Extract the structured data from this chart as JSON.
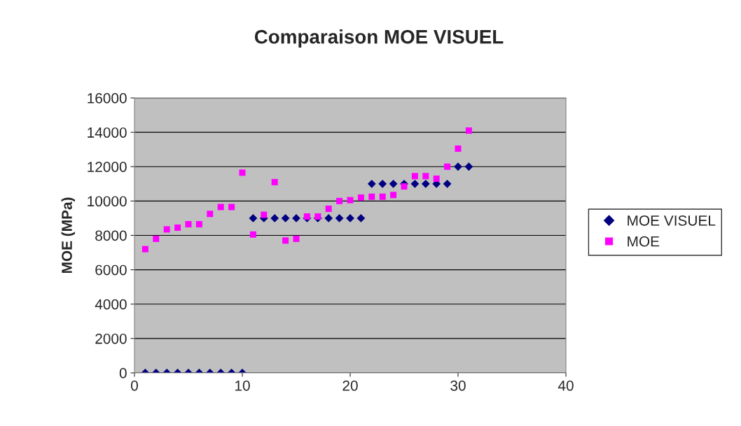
{
  "chart_data": {
    "type": "scatter",
    "title": "Comparaison MOE VISUEL",
    "ylabel": "MOE (MPa)",
    "x": [
      1,
      2,
      3,
      4,
      5,
      6,
      7,
      8,
      9,
      10,
      11,
      12,
      13,
      14,
      15,
      16,
      17,
      18,
      19,
      20,
      21,
      22,
      23,
      24,
      25,
      26,
      27,
      28,
      29,
      30,
      31
    ],
    "series": [
      {
        "name": "MOE VISUEL",
        "color": "#000080",
        "marker": "diamond",
        "values": [
          0,
          0,
          0,
          0,
          0,
          0,
          0,
          0,
          0,
          0,
          9000,
          9000,
          9000,
          9000,
          9000,
          9000,
          9000,
          9000,
          9000,
          9000,
          9000,
          11000,
          11000,
          11000,
          11000,
          11000,
          11000,
          11000,
          11000,
          12000,
          12000
        ]
      },
      {
        "name": "MOE",
        "color": "#ff00ff",
        "marker": "square",
        "values": [
          7200,
          7800,
          8350,
          8450,
          8650,
          8650,
          9250,
          9650,
          9650,
          11650,
          8050,
          9200,
          11100,
          7700,
          7800,
          9100,
          9100,
          9550,
          10000,
          10050,
          10200,
          10250,
          10250,
          10350,
          10850,
          11450,
          11450,
          11300,
          12000,
          13050,
          14100
        ]
      }
    ],
    "xlim": [
      0,
      40
    ],
    "xticks": [
      0,
      10,
      20,
      30,
      40
    ],
    "ylim": [
      0,
      16000
    ],
    "yticks": [
      0,
      2000,
      4000,
      6000,
      8000,
      10000,
      12000,
      14000,
      16000
    ],
    "grid": "y",
    "legend": "right"
  }
}
